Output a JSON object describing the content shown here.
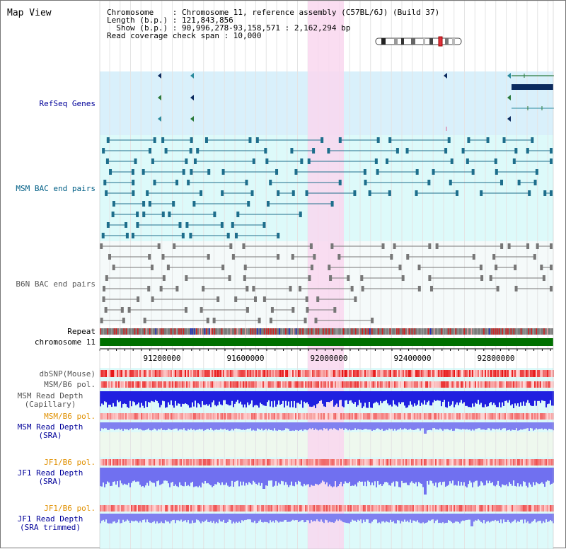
{
  "header": {
    "title": "Map View",
    "info_lines": [
      "Chromosome    : Chromosome 11, reference assembly (C57BL/6J) (Build 37)",
      "Length (b.p.) : 121,843,856",
      "  Show (b.p.) : 90,996,278-93,158,571 : 2,162,294 bp",
      "Read coverage check span : 10,000"
    ]
  },
  "tracks": {
    "refseq": "RefSeq Genes",
    "msm_bac": "MSM BAC end pairs",
    "b6n_bac": "B6N BAC end pairs",
    "repeat": "Repeat",
    "chromosome": "chromosome 11",
    "dbsnp": "dbSNP(Mouse)",
    "msm_b6_pol_1": "MSM/B6 pol.",
    "msm_depth_cap_1": "MSM Read Depth",
    "msm_depth_cap_2": "(Capillary)",
    "msm_b6_pol_2": "MSM/B6 pol.",
    "msm_depth_sra_1": "MSM Read Depth",
    "msm_depth_sra_2": "(SRA)",
    "jf1_b6_pol_1": "JF1/B6 pol.",
    "jf1_depth_sra_1": "JF1 Read Depth",
    "jf1_depth_sra_2": "(SRA)",
    "jf1_b6_pol_2": "JF1/B6 pol.",
    "jf1_depth_trim_1": "JF1 Read Depth",
    "jf1_depth_trim_2": "(SRA trimmed)"
  },
  "axis": {
    "ticks": [
      "91200000",
      "91600000",
      "92000000",
      "92400000",
      "92800000"
    ]
  },
  "colors": {
    "refseq_bg": "#d9f0fb",
    "msm_bg": "#ddfafa",
    "b6n_bg": "#f5fafa",
    "highlight": "#f9d7ef",
    "chromosome_bar": "#007000",
    "refseq_label": "#000099",
    "msm_label": "#005f86",
    "b6n_label": "#555555",
    "pol_label_orange": "#e09000",
    "depth_label": "#000099",
    "msm_feature": "#1e6e8c",
    "b6n_feature": "#777777",
    "gene_green": "#2a7a3c",
    "gene_blue": "#0b2a5e"
  }
}
